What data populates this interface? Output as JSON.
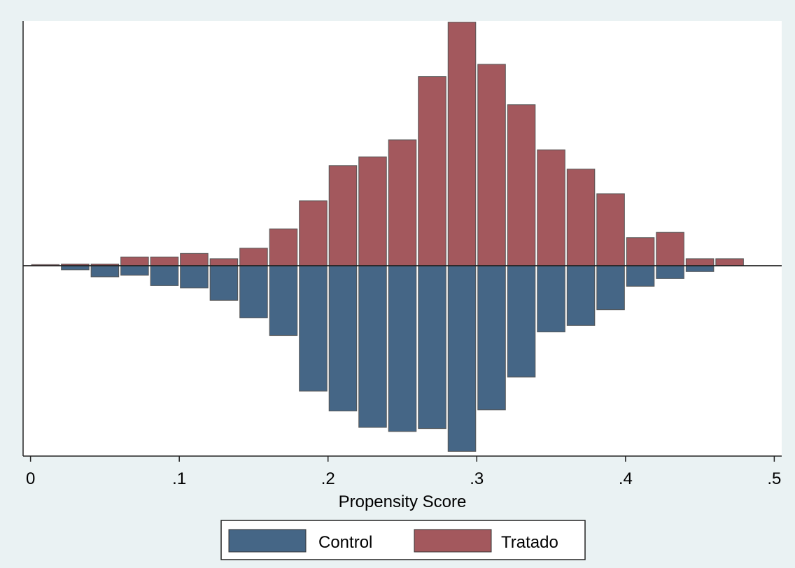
{
  "chart_data": {
    "type": "bar",
    "subtype": "mirrored-histogram",
    "title": "",
    "xlabel": "Propensity Score",
    "ylabel": "",
    "xlim": [
      -0.005,
      0.505
    ],
    "ylim": [
      -0.325,
      0.418
    ],
    "xticks": [
      {
        "value": 0,
        "label": "0"
      },
      {
        "value": 0.1,
        "label": ".1"
      },
      {
        "value": 0.2,
        "label": ".2"
      },
      {
        "value": 0.3,
        "label": ".3"
      },
      {
        "value": 0.4,
        "label": ".4"
      },
      {
        "value": 0.5,
        "label": ".5"
      }
    ],
    "bin_width": 0.02,
    "x": [
      0.01,
      0.03,
      0.05,
      0.07,
      0.09,
      0.11,
      0.13,
      0.15,
      0.17,
      0.19,
      0.21,
      0.23,
      0.25,
      0.27,
      0.29,
      0.31,
      0.33,
      0.35,
      0.37,
      0.39,
      0.41,
      0.43,
      0.45,
      0.47
    ],
    "series": [
      {
        "name": "Tratado",
        "color": "#a3585d",
        "values": [
          0.002,
          0.003,
          0.003,
          0.015,
          0.015,
          0.021,
          0.012,
          0.03,
          0.063,
          0.111,
          0.171,
          0.186,
          0.215,
          0.323,
          0.416,
          0.344,
          0.275,
          0.198,
          0.165,
          0.123,
          0.048,
          0.057,
          0.012,
          0.012
        ]
      },
      {
        "name": "Control",
        "color": "#456686",
        "values": [
          0.0,
          -0.007,
          -0.019,
          -0.016,
          -0.034,
          -0.038,
          -0.059,
          -0.089,
          -0.119,
          -0.214,
          -0.248,
          -0.276,
          -0.283,
          -0.278,
          -0.317,
          -0.246,
          -0.19,
          -0.113,
          -0.102,
          -0.075,
          -0.035,
          -0.022,
          -0.01,
          0.0
        ]
      }
    ],
    "grid": false,
    "zero_line": true,
    "legend": {
      "position": "bottom",
      "entries": [
        {
          "label": "Control",
          "color": "#456686"
        },
        {
          "label": "Tratado",
          "color": "#a3585d"
        }
      ]
    }
  }
}
